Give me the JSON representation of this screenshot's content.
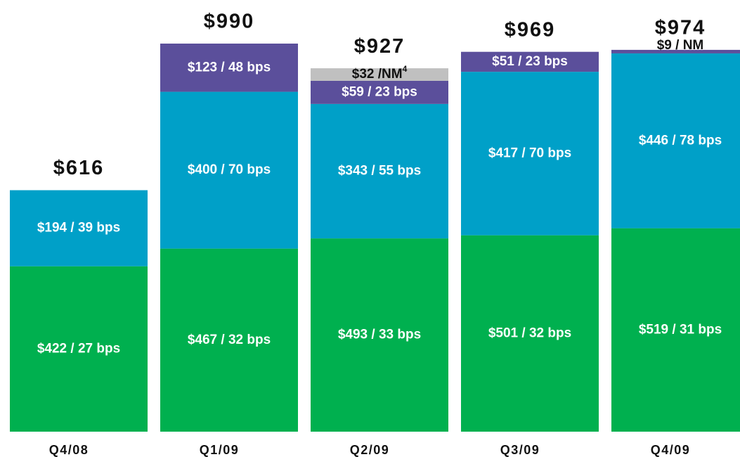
{
  "chart_data": {
    "type": "stacked_bar",
    "categories": [
      "Q4/08",
      "Q1/09",
      "Q2/09",
      "Q3/09",
      "Q4/09"
    ],
    "totals": [
      616,
      990,
      927,
      969,
      974
    ],
    "total_labels": [
      "$616",
      "$990",
      "$927",
      "$969",
      "$974"
    ],
    "series": [
      {
        "color": "#00b04f",
        "values": [
          422,
          467,
          493,
          501,
          519
        ],
        "value_labels": [
          "$422 / 27 bps",
          "$467 / 32 bps",
          "$493 / 33 bps",
          "$501 / 32 bps",
          "$519 / 31 bps"
        ]
      },
      {
        "color": "#00a0c8",
        "values": [
          194,
          400,
          343,
          417,
          446
        ],
        "value_labels": [
          "$194 / 39 bps",
          "$400 / 70 bps",
          "$343 / 55 bps",
          "$417 / 70 bps",
          "$446 / 78 bps"
        ]
      },
      {
        "color": "#5b4f9b",
        "values": [
          null,
          123,
          59,
          51,
          9
        ],
        "value_labels": [
          null,
          "$123 / 48 bps",
          "$59 / 23 bps",
          "$51 / 23 bps",
          "$9 / NM"
        ]
      },
      {
        "color": "#c0c0c0",
        "values": [
          null,
          null,
          32,
          null,
          null
        ],
        "value_labels": [
          null,
          null,
          "$32 /NM",
          null,
          null
        ],
        "value_label_superscripts": [
          null,
          null,
          "4",
          null,
          null
        ]
      }
    ]
  }
}
